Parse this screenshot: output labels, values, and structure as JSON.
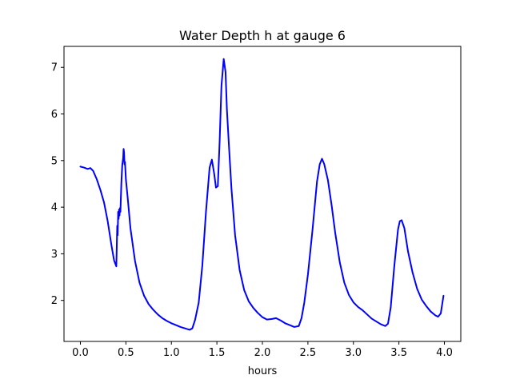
{
  "chart_data": {
    "type": "line",
    "title": "Water Depth h at gauge 6",
    "xlabel": "hours",
    "ylabel": "",
    "xlim": [
      -0.18,
      4.18
    ],
    "ylim": [
      1.12,
      7.45
    ],
    "grid": false,
    "legend": "none",
    "x_ticks": [
      0.0,
      0.5,
      1.0,
      1.5,
      2.0,
      2.5,
      3.0,
      3.5,
      4.0
    ],
    "x_tick_labels": [
      "0.0",
      "0.5",
      "1.0",
      "1.5",
      "2.0",
      "2.5",
      "3.0",
      "3.5",
      "4.0"
    ],
    "y_ticks": [
      2,
      3,
      4,
      5,
      6,
      7
    ],
    "y_tick_labels": [
      "2",
      "3",
      "4",
      "5",
      "6",
      "7"
    ],
    "series": [
      {
        "color": "#0000ff",
        "x": [
          0.0,
          0.04,
          0.08,
          0.11,
          0.14,
          0.18,
          0.22,
          0.26,
          0.3,
          0.34,
          0.37,
          0.395,
          0.405,
          0.41,
          0.415,
          0.42,
          0.425,
          0.43,
          0.435,
          0.44,
          0.45,
          0.46,
          0.47,
          0.475,
          0.48,
          0.485,
          0.49,
          0.5,
          0.52,
          0.55,
          0.6,
          0.65,
          0.7,
          0.75,
          0.8,
          0.85,
          0.9,
          0.95,
          1.0,
          1.05,
          1.1,
          1.15,
          1.2,
          1.23,
          1.26,
          1.3,
          1.34,
          1.38,
          1.42,
          1.445,
          1.47,
          1.49,
          1.51,
          1.53,
          1.55,
          1.575,
          1.595,
          1.61,
          1.63,
          1.66,
          1.7,
          1.75,
          1.8,
          1.85,
          1.9,
          1.95,
          2.0,
          2.05,
          2.1,
          2.15,
          2.2,
          2.25,
          2.3,
          2.35,
          2.4,
          2.43,
          2.46,
          2.5,
          2.55,
          2.6,
          2.63,
          2.655,
          2.68,
          2.72,
          2.76,
          2.8,
          2.85,
          2.9,
          2.95,
          3.0,
          3.05,
          3.1,
          3.15,
          3.2,
          3.25,
          3.3,
          3.35,
          3.38,
          3.41,
          3.45,
          3.49,
          3.51,
          3.53,
          3.56,
          3.6,
          3.65,
          3.7,
          3.75,
          3.8,
          3.85,
          3.9,
          3.93,
          3.96,
          3.99
        ],
        "y": [
          4.87,
          4.85,
          4.82,
          4.84,
          4.78,
          4.6,
          4.37,
          4.1,
          3.7,
          3.2,
          2.86,
          2.73,
          3.6,
          3.4,
          3.9,
          3.75,
          3.95,
          3.82,
          3.98,
          3.9,
          4.5,
          4.9,
          5.05,
          5.25,
          5.18,
          4.92,
          4.97,
          4.6,
          4.2,
          3.55,
          2.85,
          2.38,
          2.1,
          1.92,
          1.8,
          1.7,
          1.62,
          1.56,
          1.51,
          1.47,
          1.43,
          1.4,
          1.37,
          1.4,
          1.58,
          1.95,
          2.75,
          3.9,
          4.85,
          5.02,
          4.72,
          4.42,
          4.45,
          5.4,
          6.6,
          7.18,
          6.9,
          6.1,
          5.4,
          4.4,
          3.4,
          2.65,
          2.22,
          1.98,
          1.84,
          1.73,
          1.64,
          1.59,
          1.6,
          1.62,
          1.57,
          1.51,
          1.47,
          1.43,
          1.45,
          1.62,
          1.95,
          2.55,
          3.5,
          4.55,
          4.92,
          5.04,
          4.92,
          4.58,
          4.05,
          3.45,
          2.82,
          2.38,
          2.12,
          1.96,
          1.86,
          1.79,
          1.7,
          1.61,
          1.55,
          1.49,
          1.45,
          1.5,
          1.85,
          2.75,
          3.52,
          3.7,
          3.72,
          3.55,
          3.05,
          2.6,
          2.25,
          2.02,
          1.88,
          1.76,
          1.68,
          1.65,
          1.72,
          2.1
        ]
      }
    ]
  }
}
